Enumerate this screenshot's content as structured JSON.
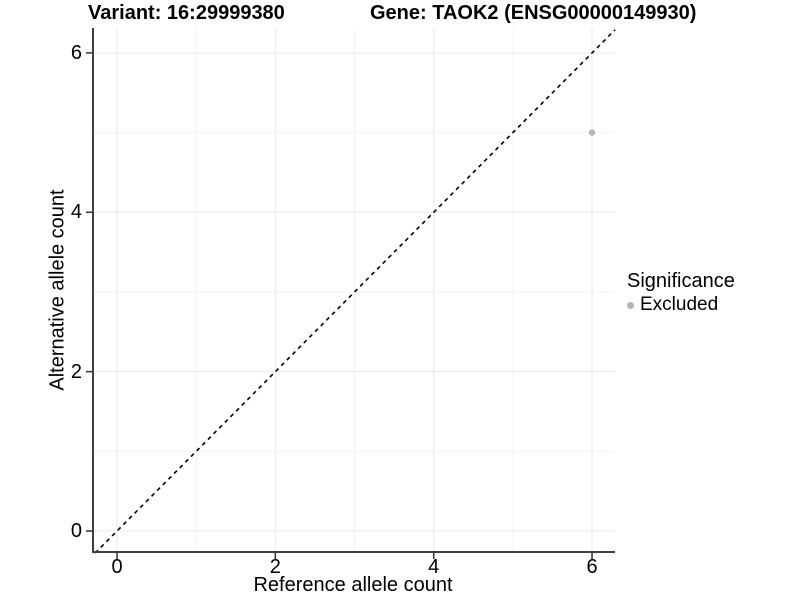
{
  "chart_data": {
    "type": "scatter",
    "title_left": "Variant: 16:29999380",
    "title_right": "Gene: TAOK2 (ENSG00000149930)",
    "xlabel": "Reference allele count",
    "ylabel": "Alternative allele count",
    "xlim": [
      -0.316,
      6.29
    ],
    "ylim": [
      -0.276,
      6.313
    ],
    "x_ticks": [
      0,
      2,
      4,
      6
    ],
    "y_ticks": [
      0,
      2,
      4,
      6
    ],
    "x_minor_ticks": [
      1,
      3,
      5
    ],
    "y_minor_ticks": [
      1,
      3,
      5
    ],
    "grid": true,
    "points": [
      {
        "x": 6,
        "y": 5,
        "series": "Excluded"
      }
    ],
    "reference_line": {
      "slope": 1,
      "intercept": 0,
      "style": "dashed"
    },
    "legend": {
      "title": "Significance",
      "position": "right",
      "entries": [
        {
          "label": "Excluded",
          "color": "#b5b5b5"
        }
      ]
    },
    "style": {
      "point_color": "#b5b5b5",
      "point_radius": 3.2,
      "axis_line_color": "#3f3f3f",
      "tick_color": "#333333",
      "grid_major_color": "#e8e8e8",
      "grid_minor_color": "#f3f3f3",
      "dashed_line_color": "#000000",
      "background": "#ffffff"
    }
  }
}
